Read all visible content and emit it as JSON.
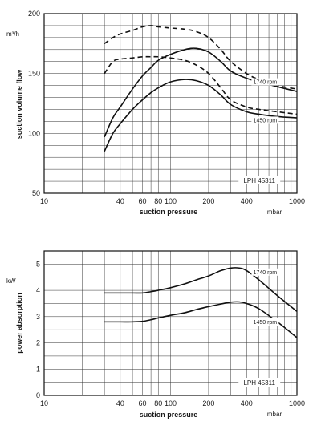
{
  "figure": "pump performance curves",
  "chart_data": [
    {
      "type": "line",
      "x_scale": "log",
      "xlim": [
        10,
        1000
      ],
      "ylim": [
        50,
        200
      ],
      "xlabel": "suction pressure",
      "x_unit": "mbar",
      "ylabel": "suction volume flow",
      "y_unit": "m³/h",
      "x_tick_labels": [
        "10",
        "40",
        "60",
        "80",
        "100",
        "200",
        "400",
        "1000"
      ],
      "x_tick_values": [
        10,
        40,
        60,
        80,
        100,
        200,
        400,
        1000
      ],
      "y_tick_labels": [
        "50",
        "100",
        "150",
        "200"
      ],
      "y_tick_values": [
        50,
        100,
        150,
        200
      ],
      "model_label": "LPH 45311",
      "grid": true,
      "curve_labels": [
        {
          "text": "1740 rpm",
          "x": 560,
          "y": 142
        },
        {
          "text": "1450 rpm",
          "x": 560,
          "y": 110
        }
      ],
      "series": [
        {
          "style": "dashed",
          "x": [
            30,
            35,
            40,
            50,
            60,
            70,
            80,
            100,
            130,
            160,
            200,
            250,
            300,
            400,
            500,
            700,
            1000
          ],
          "y": [
            175,
            180,
            183,
            186,
            189,
            190,
            189,
            188,
            187,
            185,
            180,
            170,
            160,
            150,
            145,
            140,
            137
          ]
        },
        {
          "style": "solid",
          "x": [
            30,
            35,
            40,
            50,
            60,
            70,
            80,
            100,
            130,
            160,
            200,
            250,
            300,
            400,
            500,
            700,
            1000
          ],
          "y": [
            97,
            113,
            122,
            137,
            148,
            155,
            161,
            166,
            170,
            171,
            168,
            160,
            152,
            146,
            143,
            139,
            135
          ]
        },
        {
          "style": "dashed",
          "x": [
            30,
            35,
            40,
            50,
            60,
            70,
            80,
            100,
            130,
            160,
            200,
            250,
            300,
            400,
            500,
            700,
            1000
          ],
          "y": [
            150,
            160,
            162,
            163,
            164,
            164,
            164,
            163,
            161,
            157,
            150,
            138,
            128,
            122,
            120,
            118,
            116
          ]
        },
        {
          "style": "solid",
          "x": [
            30,
            35,
            40,
            50,
            60,
            70,
            80,
            100,
            130,
            160,
            200,
            250,
            300,
            400,
            500,
            700,
            1000
          ],
          "y": [
            85,
            100,
            108,
            120,
            128,
            134,
            138,
            143,
            145,
            144,
            140,
            132,
            124,
            118,
            116,
            114,
            113
          ]
        }
      ]
    },
    {
      "type": "line",
      "x_scale": "log",
      "xlim": [
        10,
        1000
      ],
      "ylim": [
        0,
        5.5
      ],
      "xlabel": "suction pressure",
      "x_unit": "mbar",
      "ylabel": "power absorption",
      "y_unit": "kW",
      "x_tick_labels": [
        "10",
        "40",
        "60",
        "80",
        "100",
        "200",
        "400",
        "1000"
      ],
      "x_tick_values": [
        10,
        40,
        60,
        80,
        100,
        200,
        400,
        1000
      ],
      "y_tick_labels": [
        "0",
        "1",
        "2",
        "3",
        "4",
        "5"
      ],
      "y_tick_values": [
        0,
        1,
        2,
        3,
        4,
        5
      ],
      "model_label": "LPH 45311",
      "grid": true,
      "curve_labels": [
        {
          "text": "1740 rpm",
          "x": 560,
          "y": 4.65
        },
        {
          "text": "1450 rpm",
          "x": 560,
          "y": 2.75
        }
      ],
      "series": [
        {
          "style": "solid",
          "x": [
            30,
            40,
            50,
            60,
            70,
            80,
            100,
            130,
            160,
            200,
            250,
            300,
            350,
            400,
            500,
            700,
            1000
          ],
          "y": [
            3.9,
            3.9,
            3.9,
            3.9,
            3.95,
            4.0,
            4.1,
            4.25,
            4.4,
            4.55,
            4.75,
            4.85,
            4.85,
            4.75,
            4.4,
            3.8,
            3.2
          ]
        },
        {
          "style": "solid",
          "x": [
            30,
            40,
            50,
            60,
            70,
            80,
            100,
            130,
            160,
            200,
            250,
            300,
            350,
            400,
            500,
            700,
            1000
          ],
          "y": [
            2.8,
            2.8,
            2.8,
            2.82,
            2.88,
            2.95,
            3.05,
            3.15,
            3.27,
            3.38,
            3.48,
            3.55,
            3.56,
            3.5,
            3.3,
            2.8,
            2.2
          ]
        }
      ]
    }
  ]
}
